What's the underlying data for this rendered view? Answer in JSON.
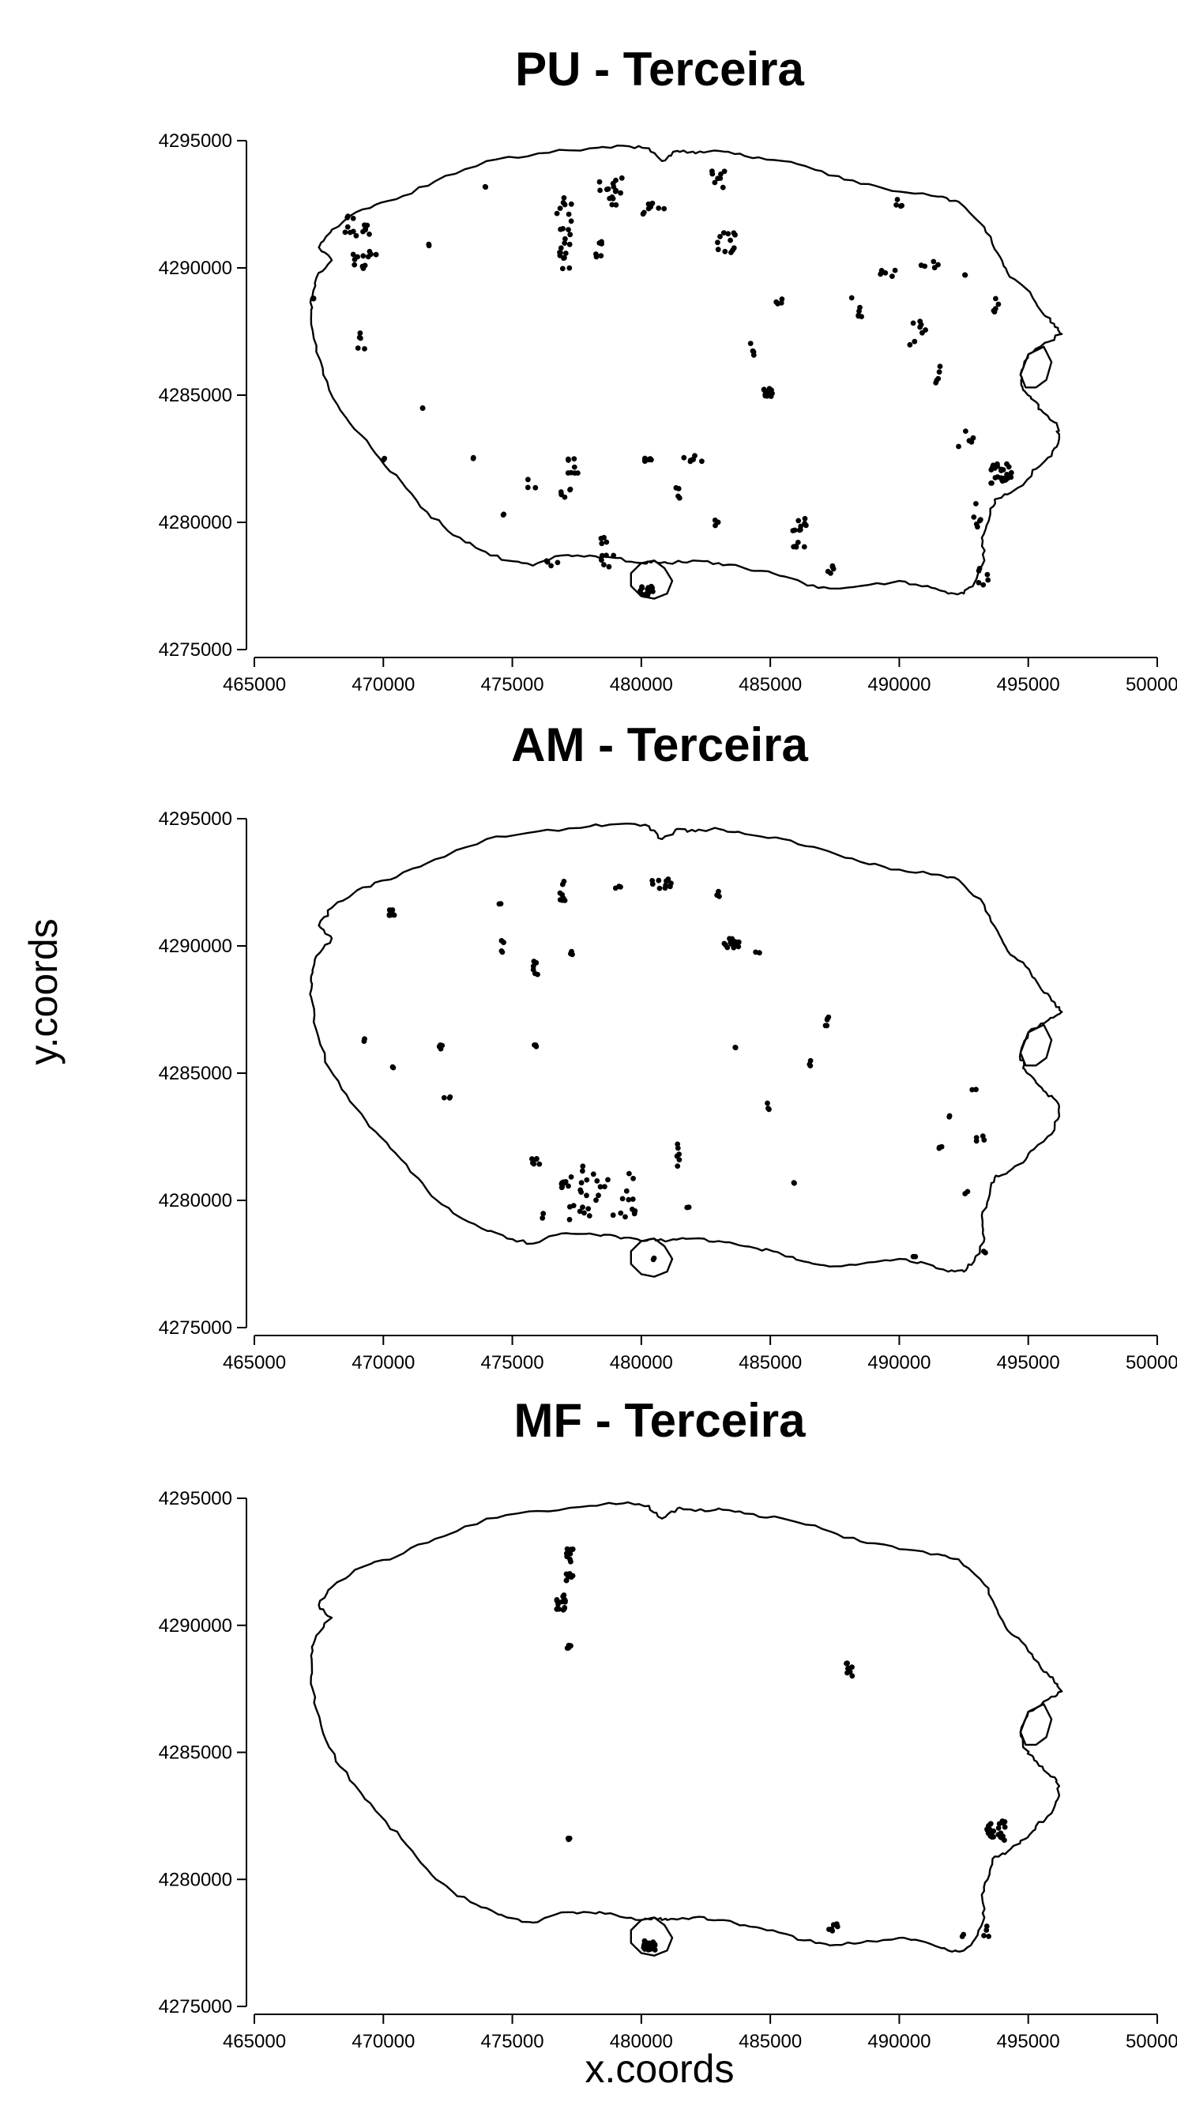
{
  "figure": {
    "xlabel": "x.coords",
    "ylabel": "y.coords"
  },
  "chart_data": [
    {
      "type": "scatter",
      "title": "PU - Terceira",
      "xlabel": "x.coords",
      "ylabel": "y.coords",
      "xlim": [
        465000,
        500000
      ],
      "ylim": [
        4275000,
        4295000
      ],
      "xticks": [
        "465000",
        "470000",
        "475000",
        "480000",
        "485000",
        "490000",
        "495000",
        "500000"
      ],
      "yticks": [
        "4275000",
        "4280000",
        "4285000",
        "4290000",
        "4295000"
      ],
      "clusters": [
        {
          "x": 480200,
          "y": 4277300,
          "n": 22,
          "sx": 250,
          "sy": 180
        },
        {
          "x": 469000,
          "y": 4291600,
          "n": 14,
          "sx": 500,
          "sy": 450
        },
        {
          "x": 469300,
          "y": 4290300,
          "n": 12,
          "sx": 550,
          "sy": 350
        },
        {
          "x": 477000,
          "y": 4290800,
          "n": 16,
          "sx": 250,
          "sy": 850
        },
        {
          "x": 477000,
          "y": 4292300,
          "n": 8,
          "sx": 300,
          "sy": 500
        },
        {
          "x": 478800,
          "y": 4293000,
          "n": 16,
          "sx": 450,
          "sy": 550
        },
        {
          "x": 480500,
          "y": 4292300,
          "n": 8,
          "sx": 500,
          "sy": 250
        },
        {
          "x": 478400,
          "y": 4290700,
          "n": 6,
          "sx": 200,
          "sy": 500
        },
        {
          "x": 482900,
          "y": 4293500,
          "n": 8,
          "sx": 350,
          "sy": 500
        },
        {
          "x": 483300,
          "y": 4291000,
          "n": 12,
          "sx": 450,
          "sy": 400
        },
        {
          "x": 484900,
          "y": 4285100,
          "n": 16,
          "sx": 180,
          "sy": 180
        },
        {
          "x": 484300,
          "y": 4286800,
          "n": 4,
          "sx": 120,
          "sy": 250
        },
        {
          "x": 485300,
          "y": 4288700,
          "n": 4,
          "sx": 180,
          "sy": 120
        },
        {
          "x": 488300,
          "y": 4288500,
          "n": 6,
          "sx": 300,
          "sy": 450
        },
        {
          "x": 489500,
          "y": 4289800,
          "n": 5,
          "sx": 350,
          "sy": 200
        },
        {
          "x": 491200,
          "y": 4290100,
          "n": 5,
          "sx": 400,
          "sy": 150
        },
        {
          "x": 490700,
          "y": 4287400,
          "n": 8,
          "sx": 350,
          "sy": 500
        },
        {
          "x": 491600,
          "y": 4285900,
          "n": 5,
          "sx": 200,
          "sy": 450
        },
        {
          "x": 489900,
          "y": 4292500,
          "n": 4,
          "sx": 300,
          "sy": 250
        },
        {
          "x": 493900,
          "y": 4288300,
          "n": 5,
          "sx": 350,
          "sy": 500
        },
        {
          "x": 493900,
          "y": 4281900,
          "n": 26,
          "sx": 450,
          "sy": 400
        },
        {
          "x": 492600,
          "y": 4283300,
          "n": 5,
          "sx": 350,
          "sy": 350
        },
        {
          "x": 493000,
          "y": 4280300,
          "n": 6,
          "sx": 150,
          "sy": 600
        },
        {
          "x": 493300,
          "y": 4277800,
          "n": 6,
          "sx": 250,
          "sy": 500
        },
        {
          "x": 486100,
          "y": 4279600,
          "n": 14,
          "sx": 300,
          "sy": 650
        },
        {
          "x": 487300,
          "y": 4278100,
          "n": 5,
          "sx": 200,
          "sy": 300
        },
        {
          "x": 480200,
          "y": 4282500,
          "n": 6,
          "sx": 200,
          "sy": 150
        },
        {
          "x": 481900,
          "y": 4282500,
          "n": 8,
          "sx": 450,
          "sy": 150
        },
        {
          "x": 481400,
          "y": 4281300,
          "n": 4,
          "sx": 100,
          "sy": 350
        },
        {
          "x": 477300,
          "y": 4282200,
          "n": 8,
          "sx": 250,
          "sy": 350
        },
        {
          "x": 477000,
          "y": 4280900,
          "n": 5,
          "sx": 300,
          "sy": 400
        },
        {
          "x": 478700,
          "y": 4279200,
          "n": 4,
          "sx": 300,
          "sy": 300
        },
        {
          "x": 478500,
          "y": 4278500,
          "n": 6,
          "sx": 500,
          "sy": 300
        },
        {
          "x": 476500,
          "y": 4278300,
          "n": 4,
          "sx": 500,
          "sy": 250
        },
        {
          "x": 475700,
          "y": 4281600,
          "n": 3,
          "sx": 200,
          "sy": 350
        },
        {
          "x": 469100,
          "y": 4287200,
          "n": 5,
          "sx": 250,
          "sy": 500
        },
        {
          "x": 467300,
          "y": 4288800,
          "n": 2,
          "sx": 60,
          "sy": 60
        },
        {
          "x": 471500,
          "y": 4284500,
          "n": 2,
          "sx": 50,
          "sy": 50
        },
        {
          "x": 473500,
          "y": 4282500,
          "n": 2,
          "sx": 50,
          "sy": 50
        },
        {
          "x": 470000,
          "y": 4282500,
          "n": 2,
          "sx": 50,
          "sy": 50
        },
        {
          "x": 471800,
          "y": 4290900,
          "n": 2,
          "sx": 60,
          "sy": 60
        },
        {
          "x": 474000,
          "y": 4293200,
          "n": 2,
          "sx": 60,
          "sy": 60
        },
        {
          "x": 482900,
          "y": 4280000,
          "n": 3,
          "sx": 100,
          "sy": 200
        },
        {
          "x": 474600,
          "y": 4280300,
          "n": 2,
          "sx": 80,
          "sy": 80
        },
        {
          "x": 492500,
          "y": 4289700,
          "n": 2,
          "sx": 60,
          "sy": 60
        }
      ]
    },
    {
      "type": "scatter",
      "title": "AM - Terceira",
      "xlabel": "x.coords",
      "ylabel": "y.coords",
      "xlim": [
        465000,
        500000
      ],
      "ylim": [
        4275000,
        4295000
      ],
      "xticks": [
        "465000",
        "470000",
        "475000",
        "480000",
        "485000",
        "490000",
        "495000",
        "500000"
      ],
      "yticks": [
        "4275000",
        "4280000",
        "4285000",
        "4290000",
        "4295000"
      ],
      "clusters": [
        {
          "x": 470300,
          "y": 4291300,
          "n": 8,
          "sx": 150,
          "sy": 120
        },
        {
          "x": 469300,
          "y": 4286300,
          "n": 2,
          "sx": 50,
          "sy": 50
        },
        {
          "x": 470400,
          "y": 4285200,
          "n": 2,
          "sx": 50,
          "sy": 50
        },
        {
          "x": 472200,
          "y": 4286000,
          "n": 4,
          "sx": 80,
          "sy": 120
        },
        {
          "x": 472500,
          "y": 4284100,
          "n": 3,
          "sx": 150,
          "sy": 150
        },
        {
          "x": 474500,
          "y": 4291600,
          "n": 2,
          "sx": 60,
          "sy": 60
        },
        {
          "x": 474600,
          "y": 4290000,
          "n": 5,
          "sx": 100,
          "sy": 250
        },
        {
          "x": 475900,
          "y": 4289200,
          "n": 6,
          "sx": 100,
          "sy": 400
        },
        {
          "x": 477000,
          "y": 4292100,
          "n": 8,
          "sx": 150,
          "sy": 450
        },
        {
          "x": 477300,
          "y": 4289800,
          "n": 3,
          "sx": 60,
          "sy": 200
        },
        {
          "x": 475900,
          "y": 4286100,
          "n": 3,
          "sx": 60,
          "sy": 60
        },
        {
          "x": 479100,
          "y": 4292300,
          "n": 3,
          "sx": 100,
          "sy": 60
        },
        {
          "x": 480800,
          "y": 4292400,
          "n": 10,
          "sx": 500,
          "sy": 250
        },
        {
          "x": 483000,
          "y": 4292000,
          "n": 3,
          "sx": 80,
          "sy": 350
        },
        {
          "x": 483500,
          "y": 4290100,
          "n": 14,
          "sx": 300,
          "sy": 200
        },
        {
          "x": 484500,
          "y": 4289800,
          "n": 2,
          "sx": 80,
          "sy": 80
        },
        {
          "x": 483600,
          "y": 4286000,
          "n": 2,
          "sx": 60,
          "sy": 60
        },
        {
          "x": 484900,
          "y": 4283700,
          "n": 3,
          "sx": 60,
          "sy": 150
        },
        {
          "x": 486600,
          "y": 4285400,
          "n": 3,
          "sx": 100,
          "sy": 120
        },
        {
          "x": 487300,
          "y": 4287100,
          "n": 5,
          "sx": 300,
          "sy": 400
        },
        {
          "x": 485900,
          "y": 4280700,
          "n": 2,
          "sx": 60,
          "sy": 60
        },
        {
          "x": 481400,
          "y": 4281800,
          "n": 6,
          "sx": 80,
          "sy": 500
        },
        {
          "x": 481800,
          "y": 4279700,
          "n": 2,
          "sx": 50,
          "sy": 50
        },
        {
          "x": 475900,
          "y": 4281500,
          "n": 6,
          "sx": 150,
          "sy": 150
        },
        {
          "x": 477100,
          "y": 4280700,
          "n": 10,
          "sx": 200,
          "sy": 300
        },
        {
          "x": 478200,
          "y": 4280700,
          "n": 14,
          "sx": 700,
          "sy": 700
        },
        {
          "x": 479300,
          "y": 4280500,
          "n": 6,
          "sx": 400,
          "sy": 600
        },
        {
          "x": 477400,
          "y": 4279500,
          "n": 8,
          "sx": 600,
          "sy": 300
        },
        {
          "x": 479300,
          "y": 4279500,
          "n": 6,
          "sx": 500,
          "sy": 250
        },
        {
          "x": 476200,
          "y": 4279400,
          "n": 2,
          "sx": 100,
          "sy": 200
        },
        {
          "x": 480500,
          "y": 4277700,
          "n": 2,
          "sx": 60,
          "sy": 60
        },
        {
          "x": 491600,
          "y": 4282000,
          "n": 3,
          "sx": 60,
          "sy": 150
        },
        {
          "x": 493000,
          "y": 4282400,
          "n": 4,
          "sx": 400,
          "sy": 150
        },
        {
          "x": 492900,
          "y": 4284400,
          "n": 2,
          "sx": 100,
          "sy": 60
        },
        {
          "x": 491900,
          "y": 4283300,
          "n": 2,
          "sx": 50,
          "sy": 50
        },
        {
          "x": 492600,
          "y": 4280300,
          "n": 2,
          "sx": 50,
          "sy": 50
        },
        {
          "x": 493300,
          "y": 4278000,
          "n": 2,
          "sx": 60,
          "sy": 60
        },
        {
          "x": 490600,
          "y": 4277800,
          "n": 2,
          "sx": 60,
          "sy": 60
        }
      ]
    },
    {
      "type": "scatter",
      "title": "MF - Terceira",
      "xlabel": "x.coords",
      "ylabel": "y.coords",
      "xlim": [
        465000,
        500000
      ],
      "ylim": [
        4275000,
        4295000
      ],
      "xticks": [
        "465000",
        "470000",
        "475000",
        "480000",
        "485000",
        "490000",
        "495000",
        "500000"
      ],
      "yticks": [
        "4275000",
        "4280000",
        "4285000",
        "4290000",
        "4295000"
      ],
      "clusters": [
        {
          "x": 477200,
          "y": 4292400,
          "n": 18,
          "sx": 150,
          "sy": 700
        },
        {
          "x": 476900,
          "y": 4290900,
          "n": 16,
          "sx": 180,
          "sy": 300
        },
        {
          "x": 477200,
          "y": 4289200,
          "n": 4,
          "sx": 80,
          "sy": 100
        },
        {
          "x": 477200,
          "y": 4281600,
          "n": 4,
          "sx": 80,
          "sy": 60
        },
        {
          "x": 480300,
          "y": 4277400,
          "n": 18,
          "sx": 250,
          "sy": 180
        },
        {
          "x": 488100,
          "y": 4288200,
          "n": 8,
          "sx": 150,
          "sy": 350
        },
        {
          "x": 493800,
          "y": 4281900,
          "n": 28,
          "sx": 400,
          "sy": 400
        },
        {
          "x": 487500,
          "y": 4278100,
          "n": 6,
          "sx": 300,
          "sy": 150
        },
        {
          "x": 493300,
          "y": 4278000,
          "n": 4,
          "sx": 250,
          "sy": 250
        },
        {
          "x": 492500,
          "y": 4277800,
          "n": 2,
          "sx": 60,
          "sy": 60
        }
      ]
    }
  ]
}
